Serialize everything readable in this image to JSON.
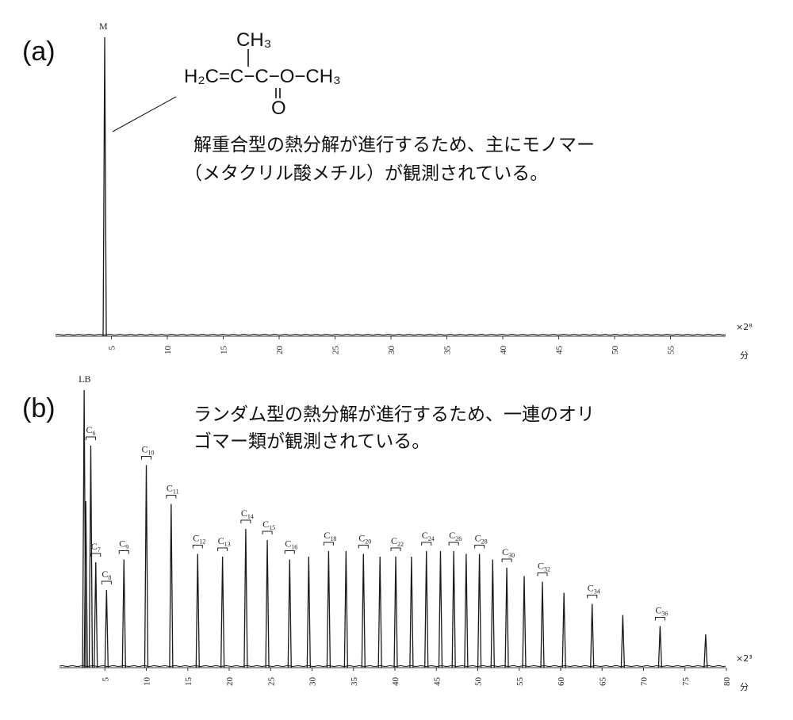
{
  "figure": {
    "panel_a_label": "(a)",
    "panel_b_label": "(b)",
    "caption_a_line1": "解重合型の熱分解が進行するため、主にモノマー",
    "caption_a_line2": "（メタクリル酸メチル）が観測されている。",
    "caption_b_line1": "ランダム型の熱分解が進行するため、一連のオリ",
    "caption_b_line2": "ゴマー類が観測されている。",
    "structure": {
      "top_group": "CH₃",
      "main_chain": "H₂C=C−C−O−CH₃",
      "carbonyl_O": "O"
    }
  },
  "chart_data": [
    {
      "type": "line",
      "panel": "(a)",
      "x_unit": "分",
      "y_scale_note": "×2⁸",
      "xlim": [
        0,
        58
      ],
      "xticks": [
        5,
        10,
        15,
        20,
        25,
        30,
        35,
        40,
        45,
        50,
        55
      ],
      "xtick_labels": [
        "5",
        "10",
        "15",
        "20",
        "25",
        "30",
        "35",
        "40",
        "45",
        "50",
        "55"
      ],
      "peaks": [
        {
          "label": "M",
          "x": 4.4,
          "height": 1.0
        }
      ]
    },
    {
      "type": "line",
      "panel": "(b)",
      "x_unit": "分",
      "y_scale_note": "×2³",
      "xlim": [
        0,
        80
      ],
      "xticks": [
        5,
        10,
        15,
        20,
        25,
        30,
        35,
        40,
        45,
        50,
        55,
        60,
        65,
        70,
        75,
        80
      ],
      "xtick_labels": [
        "5",
        "10",
        "15",
        "20",
        "25",
        "30",
        "35",
        "40",
        "45",
        "50",
        "55",
        "60",
        "65",
        "70",
        "75",
        "80"
      ],
      "peaks": [
        {
          "label": "LB",
          "x": 2.5,
          "height": 1.0
        },
        {
          "label": "",
          "x": 2.7,
          "height": 0.6
        },
        {
          "label": "C6",
          "x": 3.3,
          "height": 0.8
        },
        {
          "label": "C7",
          "x": 3.9,
          "height": 0.38
        },
        {
          "label": "C8",
          "x": 5.2,
          "height": 0.28
        },
        {
          "label": "C9",
          "x": 7.3,
          "height": 0.39
        },
        {
          "label": "C10",
          "x": 10.0,
          "height": 0.73
        },
        {
          "label": "C11",
          "x": 13.0,
          "height": 0.59
        },
        {
          "label": "C12",
          "x": 16.2,
          "height": 0.41
        },
        {
          "label": "C13",
          "x": 19.2,
          "height": 0.4
        },
        {
          "label": "C14",
          "x": 22.0,
          "height": 0.5
        },
        {
          "label": "C15",
          "x": 24.6,
          "height": 0.46
        },
        {
          "label": "C16",
          "x": 27.3,
          "height": 0.39
        },
        {
          "label": "",
          "x": 29.6,
          "height": 0.4
        },
        {
          "label": "C18",
          "x": 32.0,
          "height": 0.42
        },
        {
          "label": "",
          "x": 34.1,
          "height": 0.42
        },
        {
          "label": "C20",
          "x": 36.2,
          "height": 0.41
        },
        {
          "label": "",
          "x": 38.2,
          "height": 0.4
        },
        {
          "label": "C22",
          "x": 40.1,
          "height": 0.4
        },
        {
          "label": "",
          "x": 42.0,
          "height": 0.4
        },
        {
          "label": "C24",
          "x": 43.8,
          "height": 0.42
        },
        {
          "label": "",
          "x": 45.5,
          "height": 0.42
        },
        {
          "label": "C26",
          "x": 47.1,
          "height": 0.42
        },
        {
          "label": "",
          "x": 48.6,
          "height": 0.41
        },
        {
          "label": "C28",
          "x": 50.2,
          "height": 0.41
        },
        {
          "label": "",
          "x": 51.8,
          "height": 0.39
        },
        {
          "label": "C30",
          "x": 53.5,
          "height": 0.36
        },
        {
          "label": "",
          "x": 55.6,
          "height": 0.33
        },
        {
          "label": "C32",
          "x": 57.8,
          "height": 0.31
        },
        {
          "label": "",
          "x": 60.4,
          "height": 0.27
        },
        {
          "label": "C34",
          "x": 63.8,
          "height": 0.23
        },
        {
          "label": "",
          "x": 67.5,
          "height": 0.19
        },
        {
          "label": "C36",
          "x": 72.0,
          "height": 0.15
        },
        {
          "label": "",
          "x": 77.5,
          "height": 0.12
        }
      ]
    }
  ]
}
